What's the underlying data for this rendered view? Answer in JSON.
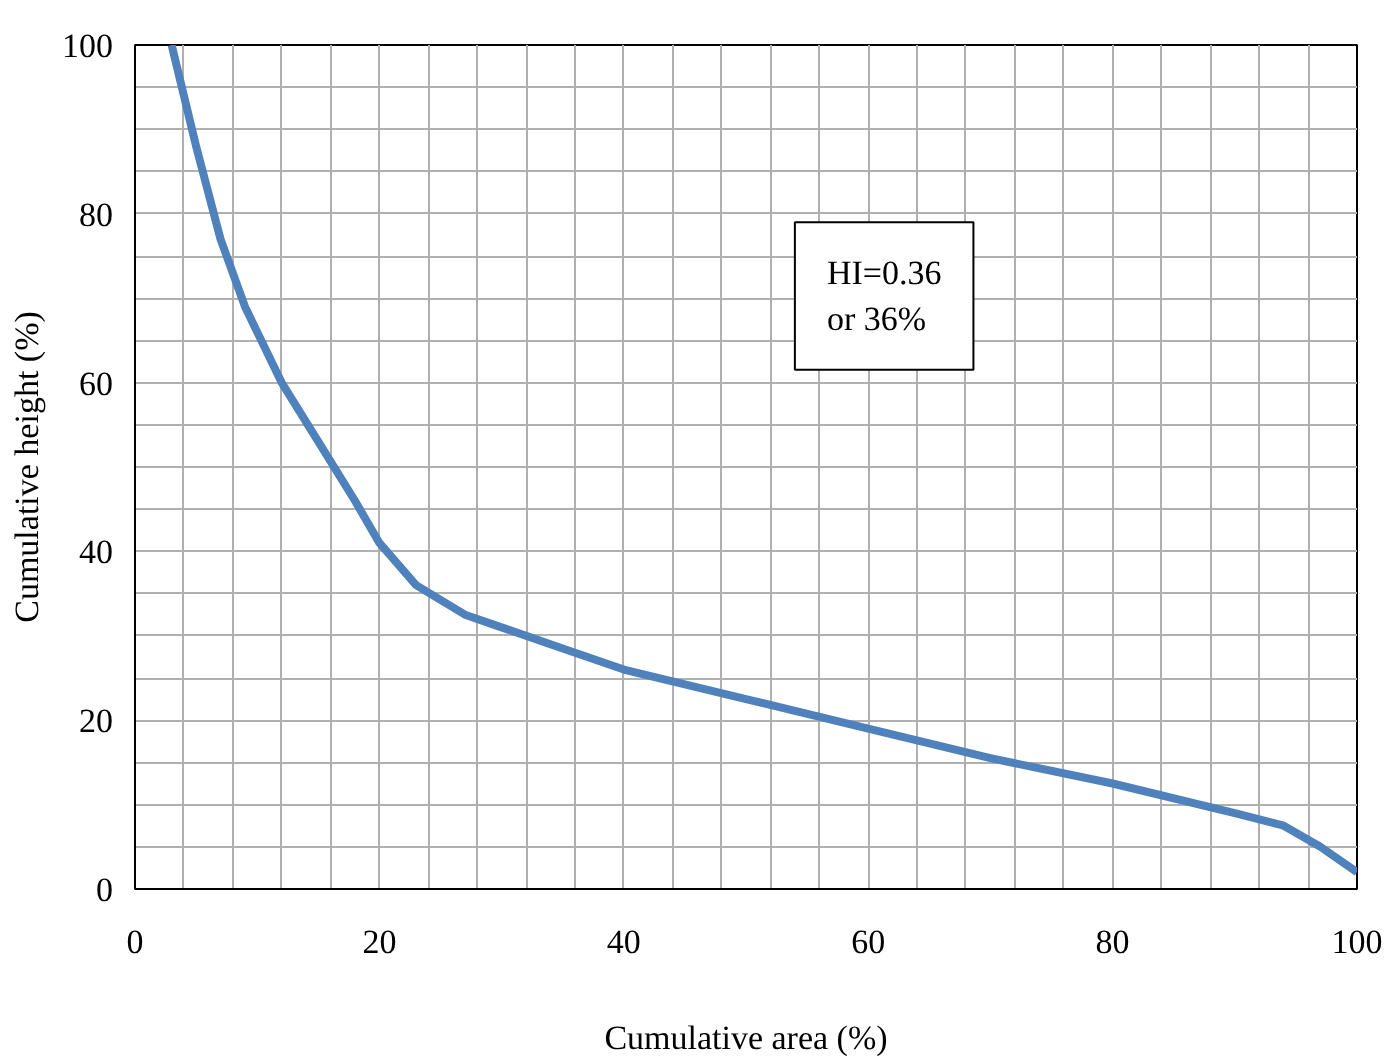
{
  "chart_data": {
    "type": "line",
    "xlabel": "Cumulative area (%)",
    "ylabel": "Cumulative height (%)",
    "x": [
      3,
      5,
      7,
      9,
      12,
      15,
      18,
      20,
      23,
      27,
      30,
      35,
      40,
      50,
      60,
      70,
      80,
      90,
      94,
      97,
      100
    ],
    "series": [
      {
        "color": "#4f81bd",
        "values": [
          100,
          88,
          77,
          69,
          60,
          53,
          46,
          41,
          36,
          32.5,
          31,
          28.5,
          26,
          22.5,
          19,
          15.5,
          12.5,
          9,
          7.5,
          5,
          2
        ]
      }
    ],
    "xlim": [
      0,
      100
    ],
    "ylim": [
      0,
      100
    ],
    "xticks": [
      0,
      {
        "value": 4,
        "label": null
      },
      {
        "value": 8,
        "label": null
      },
      {
        "value": 12,
        "label": null
      },
      {
        "value": 16,
        "label": null
      },
      20,
      {
        "value": 24,
        "label": null
      },
      {
        "value": 28,
        "label": null
      },
      {
        "value": 32,
        "label": null
      },
      {
        "value": 36,
        "label": null
      },
      40,
      {
        "value": 44,
        "label": null
      },
      {
        "value": 48,
        "label": null
      },
      {
        "value": 52,
        "label": null
      },
      {
        "value": 56,
        "label": null
      },
      60,
      {
        "value": 64,
        "label": null
      },
      {
        "value": 68,
        "label": null
      },
      {
        "value": 72,
        "label": null
      },
      {
        "value": 76,
        "label": null
      },
      80,
      {
        "value": 84,
        "label": null
      },
      {
        "value": 88,
        "label": null
      },
      {
        "value": 92,
        "label": null
      },
      {
        "value": 96,
        "label": null
      },
      100
    ],
    "yticks": [
      0,
      {
        "value": 5,
        "label": null
      },
      {
        "value": 10,
        "label": null
      },
      {
        "value": 15,
        "label": null
      },
      20,
      {
        "value": 25,
        "label": null
      },
      {
        "value": 30,
        "label": null
      },
      {
        "value": 35,
        "label": null
      },
      40,
      {
        "value": 45,
        "label": null
      },
      {
        "value": 50,
        "label": null
      },
      {
        "value": 55,
        "label": null
      },
      60,
      {
        "value": 65,
        "label": null
      },
      {
        "value": 70,
        "label": null
      },
      {
        "value": 75,
        "label": null
      },
      80,
      {
        "value": 85,
        "label": null
      },
      {
        "value": 90,
        "label": null
      },
      {
        "value": 95,
        "label": null
      },
      100
    ],
    "grid": true,
    "marker": "none",
    "line_style": "solid",
    "annotations": [
      "HI=0.36\nor 36%"
    ]
  }
}
